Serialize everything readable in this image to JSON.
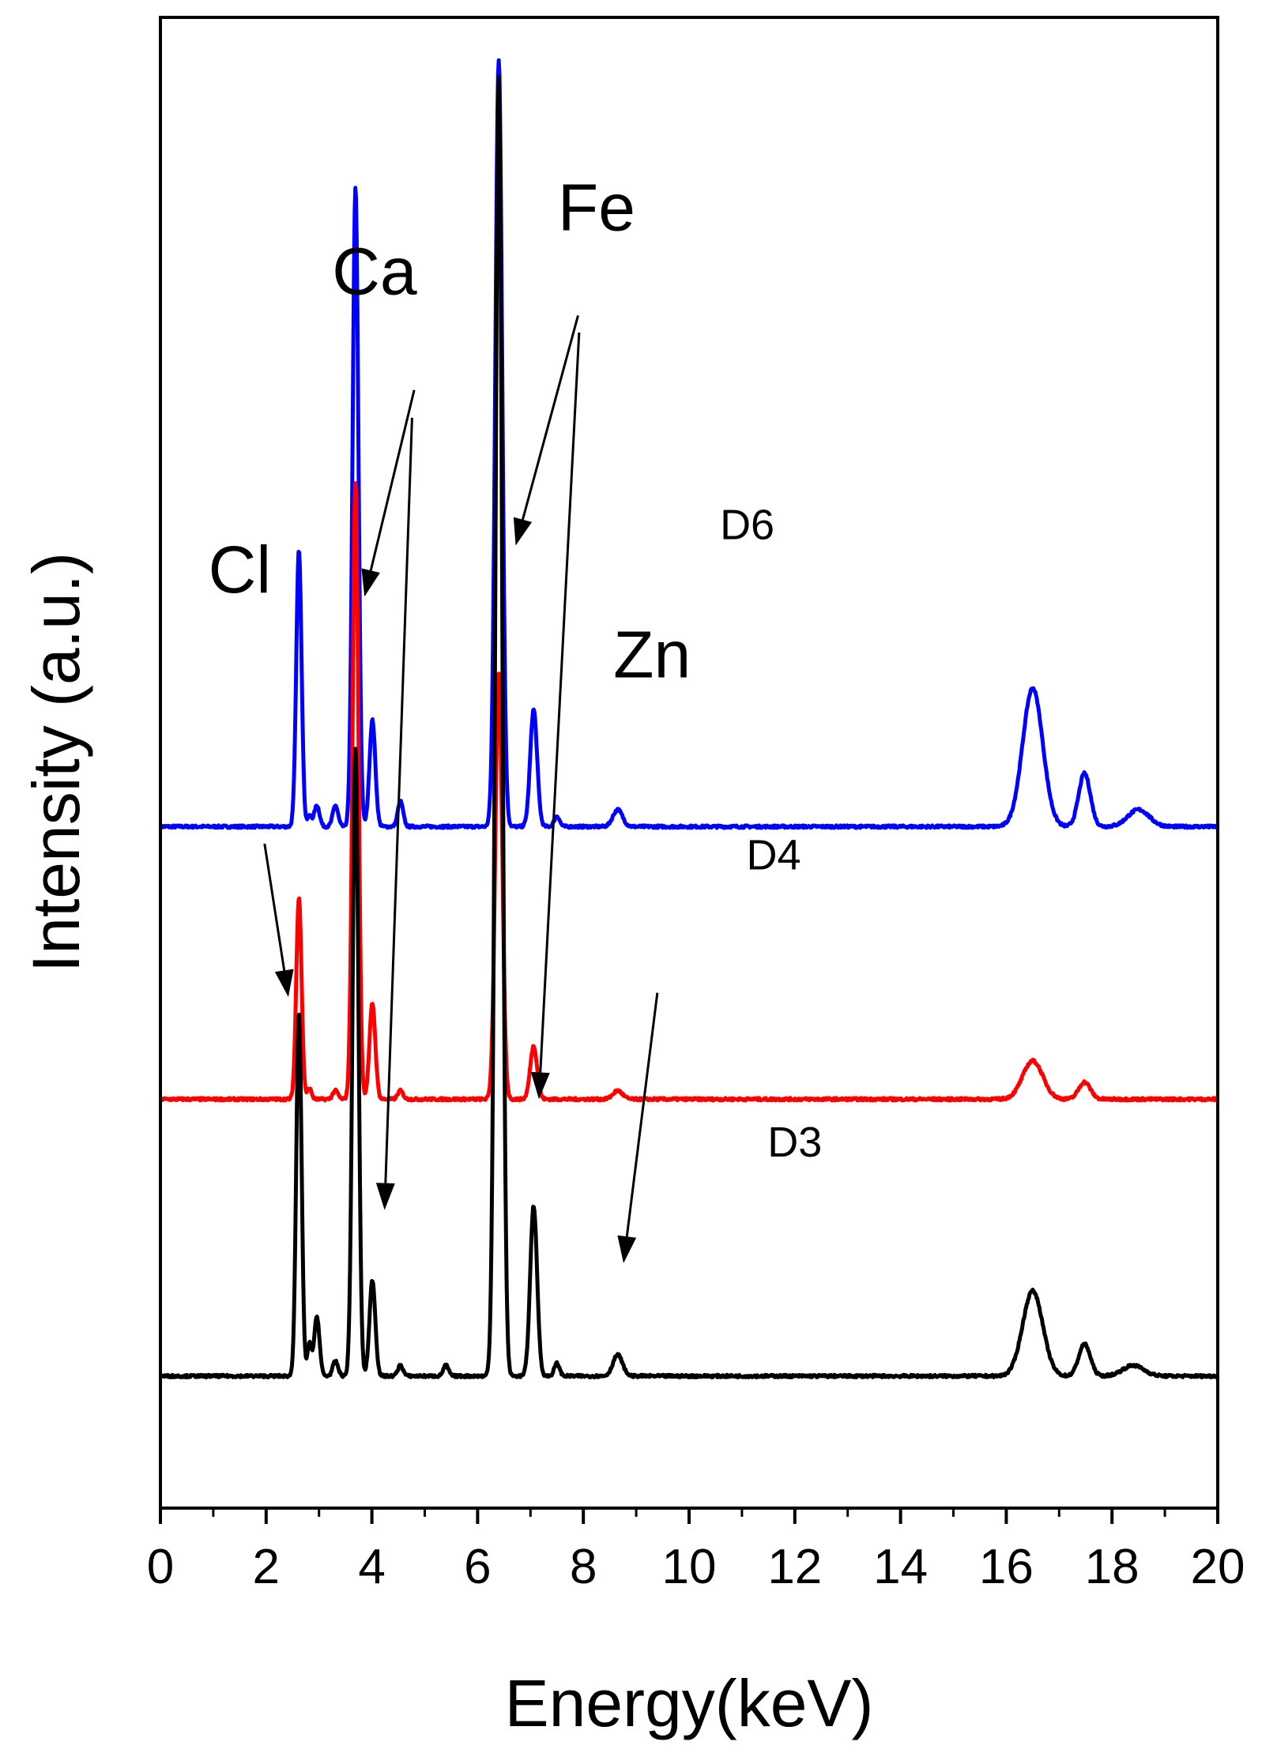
{
  "chart_data": {
    "type": "line",
    "xlabel": "Energy(keV)",
    "ylabel": "Intensity (a.u.)",
    "xlim": [
      0,
      20
    ],
    "x_ticks": [
      0,
      2,
      4,
      6,
      8,
      10,
      12,
      14,
      16,
      18,
      20
    ],
    "x_tick_labels": [
      "0",
      "2",
      "4",
      "6",
      "8",
      "10",
      "12",
      "14",
      "16",
      "18",
      "20"
    ],
    "y_ticks_shown": false,
    "grid": false,
    "legend": "none",
    "series": [
      {
        "name": "D6",
        "color": "#0000ff",
        "baseline": 2.2,
        "peaks": [
          {
            "x": 2.62,
            "h": 1.3,
            "w": 0.05
          },
          {
            "x": 2.82,
            "h": 0.05,
            "w": 0.04
          },
          {
            "x": 2.96,
            "h": 0.1,
            "w": 0.05
          },
          {
            "x": 3.31,
            "h": 0.1,
            "w": 0.05
          },
          {
            "x": 3.69,
            "h": 3.0,
            "w": 0.055
          },
          {
            "x": 4.01,
            "h": 0.5,
            "w": 0.055
          },
          {
            "x": 4.54,
            "h": 0.12,
            "w": 0.05
          },
          {
            "x": 6.4,
            "h": 3.6,
            "w": 0.065
          },
          {
            "x": 7.06,
            "h": 0.55,
            "w": 0.065
          },
          {
            "x": 7.5,
            "h": 0.05,
            "w": 0.05
          },
          {
            "x": 8.65,
            "h": 0.08,
            "w": 0.09
          },
          {
            "x": 16.5,
            "h": 0.65,
            "w": 0.19
          },
          {
            "x": 17.48,
            "h": 0.25,
            "w": 0.11
          },
          {
            "x": 18.5,
            "h": 0.08,
            "w": 0.2
          }
        ]
      },
      {
        "name": "D4",
        "color": "#ff0000",
        "baseline": 0.92,
        "peaks": [
          {
            "x": 2.62,
            "h": 0.95,
            "w": 0.05
          },
          {
            "x": 2.82,
            "h": 0.05,
            "w": 0.04
          },
          {
            "x": 3.31,
            "h": 0.04,
            "w": 0.05
          },
          {
            "x": 3.69,
            "h": 2.9,
            "w": 0.055
          },
          {
            "x": 4.01,
            "h": 0.45,
            "w": 0.055
          },
          {
            "x": 4.54,
            "h": 0.04,
            "w": 0.05
          },
          {
            "x": 6.4,
            "h": 2.0,
            "w": 0.065
          },
          {
            "x": 7.06,
            "h": 0.25,
            "w": 0.065
          },
          {
            "x": 8.65,
            "h": 0.04,
            "w": 0.09
          },
          {
            "x": 16.5,
            "h": 0.18,
            "w": 0.19
          },
          {
            "x": 17.48,
            "h": 0.08,
            "w": 0.11
          }
        ]
      },
      {
        "name": "D3",
        "color": "#000000",
        "baseline": -0.38,
        "peaks": [
          {
            "x": 2.62,
            "h": 1.7,
            "w": 0.05
          },
          {
            "x": 2.82,
            "h": 0.15,
            "w": 0.04
          },
          {
            "x": 2.96,
            "h": 0.28,
            "w": 0.05
          },
          {
            "x": 3.31,
            "h": 0.07,
            "w": 0.05
          },
          {
            "x": 3.69,
            "h": 2.95,
            "w": 0.055
          },
          {
            "x": 4.01,
            "h": 0.45,
            "w": 0.055
          },
          {
            "x": 4.54,
            "h": 0.05,
            "w": 0.05
          },
          {
            "x": 5.4,
            "h": 0.05,
            "w": 0.05
          },
          {
            "x": 6.4,
            "h": 6.1,
            "w": 0.065
          },
          {
            "x": 7.06,
            "h": 0.8,
            "w": 0.065
          },
          {
            "x": 7.5,
            "h": 0.06,
            "w": 0.05
          },
          {
            "x": 8.65,
            "h": 0.1,
            "w": 0.09
          },
          {
            "x": 16.5,
            "h": 0.4,
            "w": 0.19
          },
          {
            "x": 17.48,
            "h": 0.15,
            "w": 0.11
          },
          {
            "x": 18.4,
            "h": 0.05,
            "w": 0.2
          }
        ]
      }
    ],
    "series_labels": [
      {
        "text": "D6",
        "x": 11.1,
        "y": 3.55
      },
      {
        "text": "D4",
        "x": 11.6,
        "y": 2.0
      },
      {
        "text": "D3",
        "x": 12.0,
        "y": 0.65
      }
    ],
    "element_labels": [
      {
        "text": "Cl",
        "x": 1.5,
        "y": 3.3
      },
      {
        "text": "Ca",
        "x": 4.05,
        "y": 4.7
      },
      {
        "text": "Fe",
        "x": 8.25,
        "y": 5.0
      },
      {
        "text": "Zn",
        "x": 9.3,
        "y": 2.9
      }
    ],
    "arrows": [
      {
        "from": [
          1.97,
          2.12
        ],
        "to": [
          2.42,
          1.4
        ]
      },
      {
        "from": [
          4.8,
          4.25
        ],
        "to": [
          3.86,
          3.28
        ]
      },
      {
        "from": [
          4.76,
          4.12
        ],
        "to": [
          4.24,
          0.4
        ]
      },
      {
        "from": [
          7.9,
          4.6
        ],
        "to": [
          6.72,
          3.52
        ]
      },
      {
        "from": [
          7.92,
          4.52
        ],
        "to": [
          7.16,
          0.92
        ]
      },
      {
        "from": [
          9.4,
          1.42
        ],
        "to": [
          8.76,
          0.15
        ]
      }
    ],
    "annotation_color": "#000000"
  }
}
